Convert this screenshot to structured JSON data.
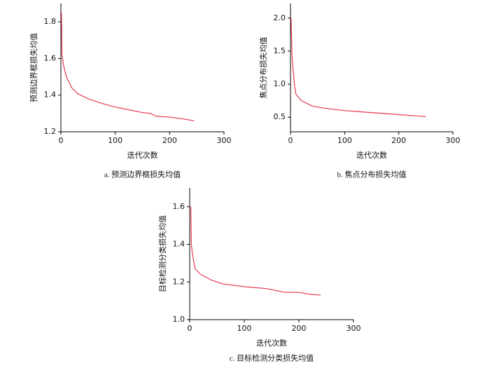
{
  "chart_data": [
    {
      "type": "line",
      "caption": "a.  预测边界框损失均值",
      "xlabel": "迭代次数",
      "ylabel": "预测边界框损失均值",
      "x": [
        1,
        2,
        5,
        10,
        20,
        30,
        50,
        75,
        100,
        125,
        150,
        165,
        175,
        200,
        225,
        245
      ],
      "series": [
        {
          "color": "#e8384f",
          "values": [
            1.85,
            1.62,
            1.56,
            1.5,
            1.44,
            1.41,
            1.38,
            1.355,
            1.335,
            1.32,
            1.305,
            1.3,
            1.285,
            1.28,
            1.27,
            1.26
          ]
        }
      ],
      "xlim": [
        0,
        300
      ],
      "xticks": [
        0,
        100,
        200,
        300
      ],
      "ylim": [
        1.2,
        1.9
      ],
      "yticks": [
        {
          "value": 1.2,
          "label": "1.2"
        },
        {
          "value": 1.4,
          "label": "1.4"
        },
        {
          "value": 1.6,
          "label": "1.6"
        },
        {
          "value": 1.8,
          "label": "1.8"
        }
      ]
    },
    {
      "type": "line",
      "caption": "b.  焦点分布损失均值",
      "xlabel": "迭代次数",
      "ylabel": "焦点分布损失均值",
      "x": [
        1,
        3,
        5,
        8,
        10,
        20,
        40,
        60,
        100,
        150,
        200,
        250
      ],
      "series": [
        {
          "color": "#e8384f",
          "values": [
            2.0,
            1.4,
            1.2,
            0.95,
            0.85,
            0.75,
            0.67,
            0.64,
            0.6,
            0.57,
            0.54,
            0.51
          ]
        }
      ],
      "xlim": [
        0,
        300
      ],
      "xticks": [
        0,
        100,
        200,
        300
      ],
      "ylim": [
        0.28,
        2.22
      ],
      "yticks": [
        0.5,
        {
          "value": 1,
          "label": "1.0"
        },
        1.5,
        {
          "value": 2,
          "label": "2.0"
        }
      ]
    },
    {
      "type": "line",
      "caption": "c.  目标检测分类损失均值",
      "xlabel": "迭代次数",
      "ylabel": "目标检测分类损失均值",
      "x": [
        2,
        3,
        5,
        8,
        10,
        20,
        40,
        60,
        100,
        140,
        175,
        200,
        220,
        240
      ],
      "series": [
        {
          "color": "#e8384f",
          "values": [
            1.6,
            1.4,
            1.35,
            1.3,
            1.27,
            1.24,
            1.21,
            1.19,
            1.175,
            1.165,
            1.145,
            1.145,
            1.135,
            1.13
          ]
        }
      ],
      "xlim": [
        0,
        300
      ],
      "xticks": [
        0,
        100,
        200,
        300
      ],
      "ylim": [
        1.0,
        1.7
      ],
      "yticks": [
        {
          "value": 1,
          "label": "1.0"
        },
        1.2,
        1.4,
        1.6
      ]
    }
  ]
}
